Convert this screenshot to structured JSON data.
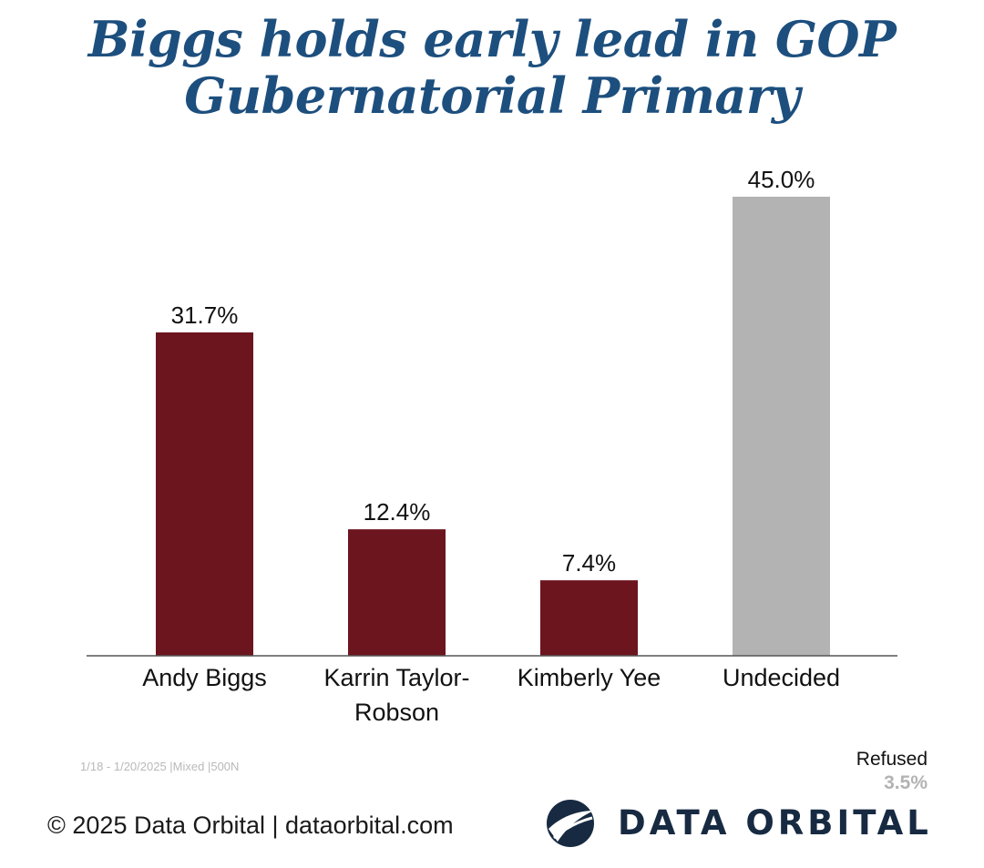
{
  "title_lines": [
    "Biggs holds early lead in GOP",
    "Gubernatorial Primary"
  ],
  "chart_data": {
    "type": "bar",
    "title": "Biggs holds early lead in GOP Gubernatorial Primary",
    "categories": [
      [
        "Andy Biggs"
      ],
      [
        "Karrin Taylor-",
        "Robson"
      ],
      [
        "Kimberly Yee"
      ],
      [
        "Undecided"
      ]
    ],
    "values": [
      31.7,
      12.4,
      7.4,
      45.0
    ],
    "value_labels": [
      "31.7%",
      "12.4%",
      "7.4%",
      "45.0%"
    ],
    "bar_colors": [
      "#6d151f",
      "#6d151f",
      "#6d151f",
      "#b3b3b3"
    ],
    "ylim": [
      0,
      50
    ],
    "grid": false,
    "legend": "none"
  },
  "meta_text": "1/18 - 1/20/2025 |Mixed |500N",
  "refused": {
    "label": "Refused",
    "value": "3.5%"
  },
  "footer": {
    "copyright": "© 2025 Data Orbital | dataorbital.com",
    "logo_text": "DATA ORBITAL"
  },
  "colors": {
    "title": "#1d4f7e",
    "logo": "#172a42",
    "candidate_bar": "#6d151f",
    "undecided_bar": "#b3b3b3"
  }
}
